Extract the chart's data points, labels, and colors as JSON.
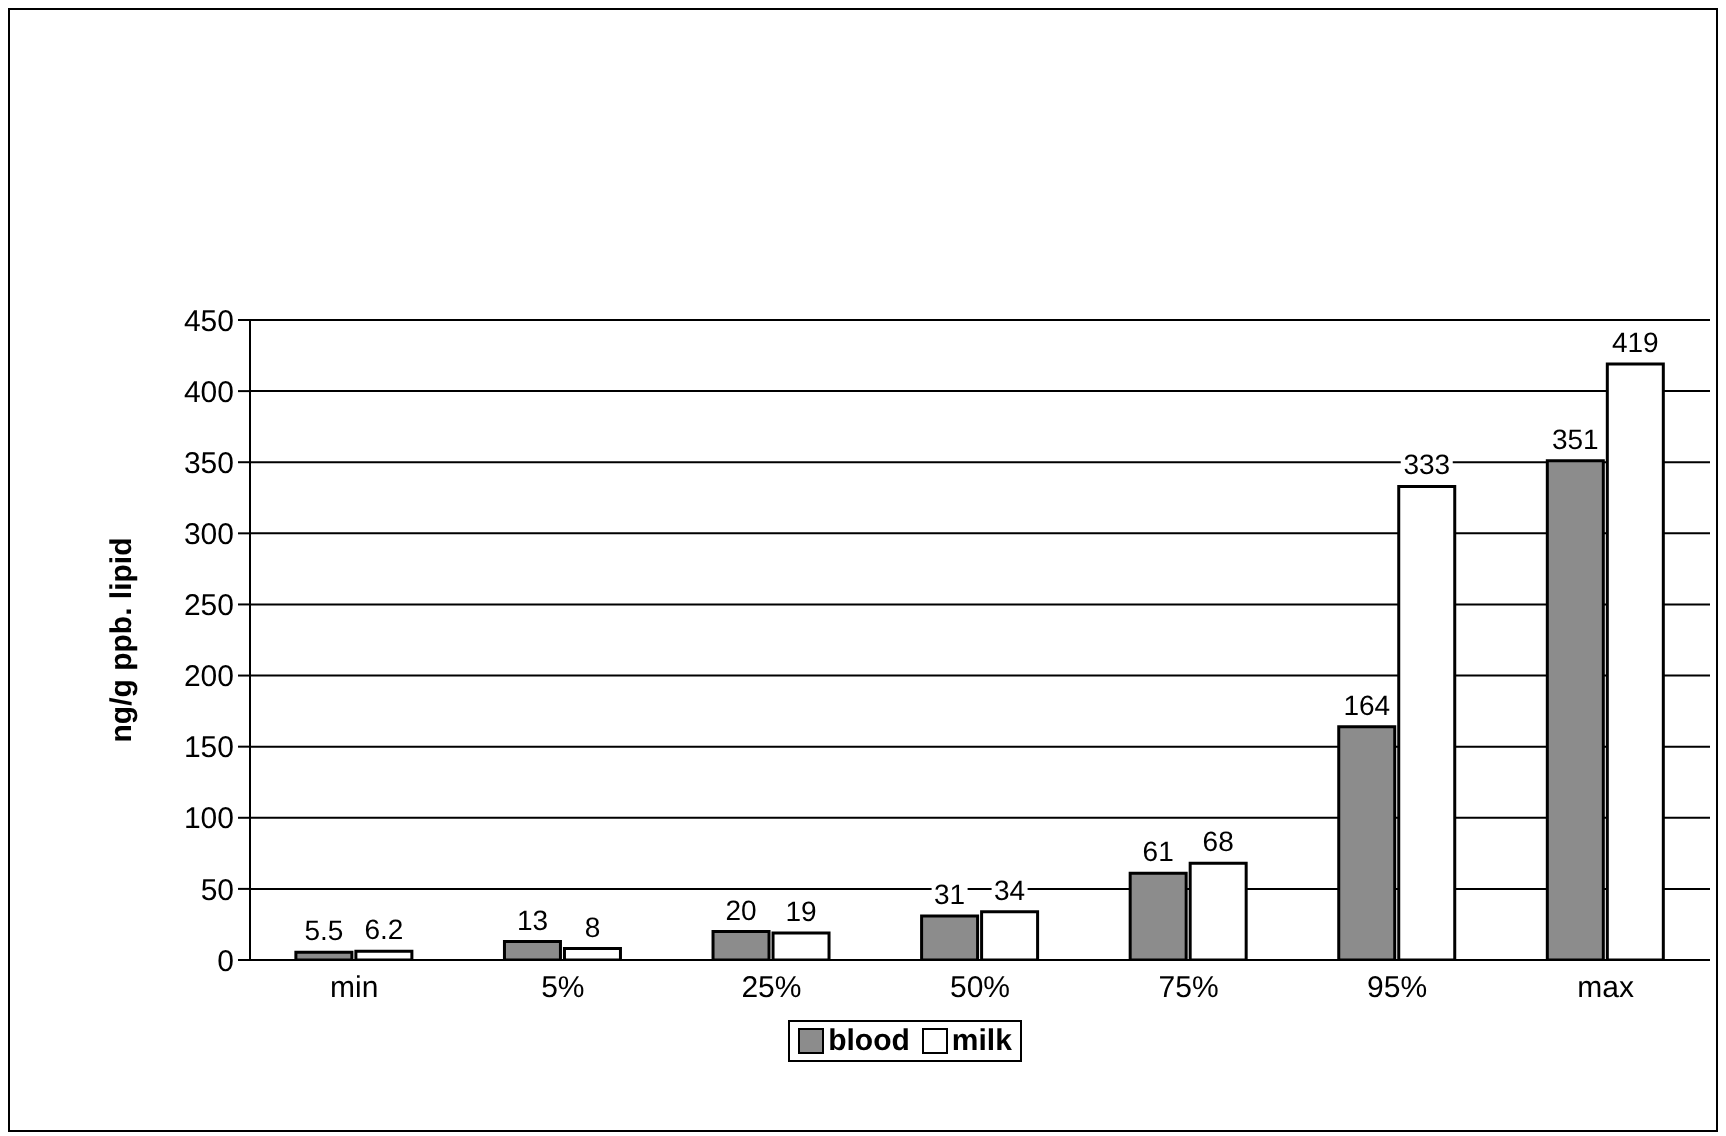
{
  "chart_data": {
    "type": "bar",
    "ylabel": "ng/g ppb. lipid",
    "categories": [
      "min",
      "5%",
      "25%",
      "50%",
      "75%",
      "95%",
      "max"
    ],
    "series": [
      {
        "name": "blood",
        "color": "#8c8c8c",
        "values": [
          5.5,
          13,
          20,
          31,
          61,
          164,
          351
        ]
      },
      {
        "name": "milk",
        "color": "#ffffff",
        "values": [
          6.2,
          8,
          19,
          34,
          68,
          333,
          419
        ]
      }
    ],
    "ylim": [
      0,
      450
    ],
    "yticks": [
      0,
      50,
      100,
      150,
      200,
      250,
      300,
      350,
      400,
      450
    ],
    "grid": "y",
    "legend": "bottom",
    "data_labels": true
  }
}
